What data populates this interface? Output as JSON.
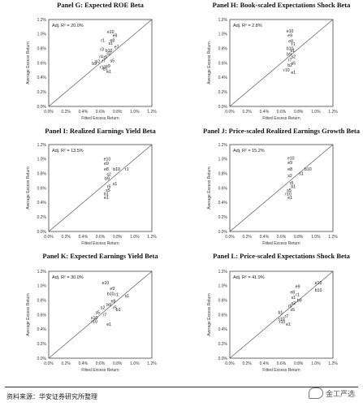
{
  "source_note": "资料来源：华安证券研究所整理",
  "watermark": "金工严选",
  "chart_data": [
    {
      "type": "scatter",
      "title": "Panel G: Expected ROE Beta",
      "xlabel": "Fitted Excess Return",
      "ylabel": "Average Excess Return",
      "annotation": "Adj. R² = 20.0%",
      "xlim": [
        0,
        1.2
      ],
      "ylim": [
        0,
        1.2
      ],
      "xticks": [
        "0.0%",
        "0.2%",
        "0.4%",
        "0.6%",
        "0.8%",
        "1.0%",
        "1.2%"
      ],
      "yticks": [
        "0.0%",
        "0.2%",
        "0.4%",
        "0.6%",
        "0.8%",
        "1.0%",
        "1.2%"
      ],
      "reference_line": "45-degree",
      "points": [
        {
          "label": "e10",
          "x": 0.72,
          "y": 1.03
        },
        {
          "label": "e9",
          "x": 0.77,
          "y": 0.98
        },
        {
          "label": "r1",
          "x": 0.63,
          "y": 0.91
        },
        {
          "label": "e8",
          "x": 0.74,
          "y": 0.91
        },
        {
          "label": "s1",
          "x": 0.72,
          "y": 0.87
        },
        {
          "label": "e7",
          "x": 0.79,
          "y": 0.82
        },
        {
          "label": "r3",
          "x": 0.62,
          "y": 0.79
        },
        {
          "label": "b10",
          "x": 0.7,
          "y": 0.77
        },
        {
          "label": "s2",
          "x": 0.7,
          "y": 0.73
        },
        {
          "label": "r4",
          "x": 0.61,
          "y": 0.69
        },
        {
          "label": "r5",
          "x": 0.66,
          "y": 0.68
        },
        {
          "label": "b2",
          "x": 0.57,
          "y": 0.62
        },
        {
          "label": "r7",
          "x": 0.64,
          "y": 0.63
        },
        {
          "label": "s5",
          "x": 0.74,
          "y": 0.63
        },
        {
          "label": "b9",
          "x": 0.53,
          "y": 0.59
        },
        {
          "label": "r10",
          "x": 0.63,
          "y": 0.54
        },
        {
          "label": "s9",
          "x": 0.69,
          "y": 0.56
        },
        {
          "label": "b1",
          "x": 0.66,
          "y": 0.52
        },
        {
          "label": "e1",
          "x": 0.7,
          "y": 0.48
        }
      ]
    },
    {
      "type": "scatter",
      "title": "Panel H: Book-scaled Expectations Shock Beta",
      "xlabel": "Fitted Excess Return",
      "ylabel": "Average Excess Return",
      "annotation": "Adj. R² = 2.8%",
      "xlim": [
        0,
        1.2
      ],
      "ylim": [
        0,
        1.2
      ],
      "xticks": [
        "0.0%",
        "0.2%",
        "0.4%",
        "0.6%",
        "0.8%",
        "1.0%",
        "1.2%"
      ],
      "yticks": [
        "0.0%",
        "0.2%",
        "0.4%",
        "0.6%",
        "0.8%",
        "1.0%",
        "1.2%"
      ],
      "reference_line": "45-degree",
      "points": [
        {
          "label": "e10",
          "x": 0.7,
          "y": 1.04
        },
        {
          "label": "e9",
          "x": 0.7,
          "y": 0.98
        },
        {
          "label": "e8",
          "x": 0.71,
          "y": 0.9
        },
        {
          "label": "r1",
          "x": 0.74,
          "y": 0.86
        },
        {
          "label": "b10",
          "x": 0.7,
          "y": 0.8
        },
        {
          "label": "s1",
          "x": 0.73,
          "y": 0.77
        },
        {
          "label": "b9",
          "x": 0.69,
          "y": 0.72
        },
        {
          "label": "s2",
          "x": 0.74,
          "y": 0.69
        },
        {
          "label": "r7",
          "x": 0.7,
          "y": 0.64
        },
        {
          "label": "s5",
          "x": 0.74,
          "y": 0.6
        },
        {
          "label": "b2",
          "x": 0.7,
          "y": 0.57
        },
        {
          "label": "r10",
          "x": 0.66,
          "y": 0.5
        },
        {
          "label": "e1",
          "x": 0.74,
          "y": 0.47
        }
      ]
    },
    {
      "type": "scatter",
      "title": "Panel I: Realized Earnings Yield Beta",
      "xlabel": "Fitted Excess Return",
      "ylabel": "Average Excess Return",
      "annotation": "Adj. R² = 13.5%",
      "xlim": [
        0,
        1.2
      ],
      "ylim": [
        0,
        1.2
      ],
      "xticks": [
        "0.0%",
        "0.2%",
        "0.4%",
        "0.6%",
        "0.8%",
        "1.0%",
        "1.2%"
      ],
      "yticks": [
        "0.0%",
        "0.2%",
        "0.4%",
        "0.6%",
        "0.8%",
        "1.0%",
        "1.2%"
      ],
      "reference_line": "45-degree",
      "points": [
        {
          "label": "e10",
          "x": 0.68,
          "y": 1.0
        },
        {
          "label": "e9",
          "x": 0.67,
          "y": 0.94
        },
        {
          "label": "e8",
          "x": 0.67,
          "y": 0.86
        },
        {
          "label": "b10",
          "x": 0.79,
          "y": 0.86
        },
        {
          "label": "r1",
          "x": 0.91,
          "y": 0.86
        },
        {
          "label": "s2",
          "x": 0.7,
          "y": 0.79
        },
        {
          "label": "b9",
          "x": 0.68,
          "y": 0.73
        },
        {
          "label": "s1",
          "x": 0.77,
          "y": 0.66
        },
        {
          "label": "r5",
          "x": 0.7,
          "y": 0.62
        },
        {
          "label": "s5",
          "x": 0.69,
          "y": 0.57
        },
        {
          "label": "b1",
          "x": 0.67,
          "y": 0.52
        },
        {
          "label": "e1",
          "x": 0.67,
          "y": 0.47
        }
      ]
    },
    {
      "type": "scatter",
      "title": "Panel J: Price-scaled Realized Earnings Growth Beta",
      "xlabel": "Fitted Excess Return",
      "ylabel": "Average Excess Return",
      "annotation": "Adj. R² = 15.2%",
      "xlim": [
        0,
        1.2
      ],
      "ylim": [
        0,
        1.2
      ],
      "xticks": [
        "0.0%",
        "0.2%",
        "0.4%",
        "0.6%",
        "0.8%",
        "1.0%",
        "1.2%"
      ],
      "yticks": [
        "0.0%",
        "0.2%",
        "0.4%",
        "0.6%",
        "0.8%",
        "1.0%",
        "1.2%"
      ],
      "reference_line": "45-degree",
      "points": [
        {
          "label": "e10",
          "x": 0.71,
          "y": 1.01
        },
        {
          "label": "e9",
          "x": 0.7,
          "y": 0.95
        },
        {
          "label": "b10",
          "x": 0.91,
          "y": 0.86
        },
        {
          "label": "e8",
          "x": 0.7,
          "y": 0.86
        },
        {
          "label": "s1",
          "x": 0.83,
          "y": 0.8
        },
        {
          "label": "s2",
          "x": 0.7,
          "y": 0.77
        },
        {
          "label": "r5",
          "x": 0.72,
          "y": 0.67
        },
        {
          "label": "b1",
          "x": 0.74,
          "y": 0.62
        },
        {
          "label": "s5",
          "x": 0.69,
          "y": 0.57
        },
        {
          "label": "r10",
          "x": 0.68,
          "y": 0.52
        },
        {
          "label": "e1",
          "x": 0.7,
          "y": 0.47
        }
      ]
    },
    {
      "type": "scatter",
      "title": "Panel K: Expected Earnings Yield Beta",
      "xlabel": "Fitted Excess Return",
      "ylabel": "Average Excess Return",
      "annotation": "Adj. R² = 30.0%",
      "xlim": [
        0,
        1.2
      ],
      "ylim": [
        0,
        1.2
      ],
      "xticks": [
        "0.0%",
        "0.2%",
        "0.4%",
        "0.6%",
        "0.8%",
        "1.0%",
        "1.2%"
      ],
      "yticks": [
        "0.0%",
        "0.2%",
        "0.4%",
        "0.6%",
        "0.8%",
        "1.0%",
        "1.2%"
      ],
      "reference_line": "45-degree",
      "points": [
        {
          "label": "e10",
          "x": 0.66,
          "y": 1.04
        },
        {
          "label": "e9",
          "x": 0.74,
          "y": 0.96
        },
        {
          "label": "b10",
          "x": 0.72,
          "y": 0.89
        },
        {
          "label": "r1",
          "x": 0.79,
          "y": 0.88
        },
        {
          "label": "s1",
          "x": 0.91,
          "y": 0.86
        },
        {
          "label": "e8",
          "x": 0.75,
          "y": 0.79
        },
        {
          "label": "b9",
          "x": 0.7,
          "y": 0.74
        },
        {
          "label": "s2",
          "x": 0.63,
          "y": 0.7
        },
        {
          "label": "r5",
          "x": 0.77,
          "y": 0.7
        },
        {
          "label": "b1",
          "x": 0.81,
          "y": 0.67
        },
        {
          "label": "s5",
          "x": 0.57,
          "y": 0.63
        },
        {
          "label": "r7",
          "x": 0.65,
          "y": 0.6
        },
        {
          "label": "s10",
          "x": 0.53,
          "y": 0.56
        },
        {
          "label": "r10",
          "x": 0.53,
          "y": 0.51
        },
        {
          "label": "e1",
          "x": 0.7,
          "y": 0.47
        }
      ]
    },
    {
      "type": "scatter",
      "title": "Panel L: Price-scaled Expectations Shock Beta",
      "xlabel": "Fitted Excess Return",
      "ylabel": "Average Excess Return",
      "annotation": "Adj. R² = 41.9%",
      "xlim": [
        0,
        1.2
      ],
      "ylim": [
        0,
        1.2
      ],
      "xticks": [
        "0.0%",
        "0.2%",
        "0.4%",
        "0.6%",
        "0.8%",
        "1.0%",
        "1.2%"
      ],
      "yticks": [
        "0.0%",
        "0.2%",
        "0.4%",
        "0.6%",
        "0.8%",
        "1.0%",
        "1.2%"
      ],
      "reference_line": "45-degree",
      "points": [
        {
          "label": "e10",
          "x": 1.03,
          "y": 1.04
        },
        {
          "label": "e9",
          "x": 0.79,
          "y": 0.99
        },
        {
          "label": "b10",
          "x": 1.03,
          "y": 0.94
        },
        {
          "label": "e8",
          "x": 0.73,
          "y": 0.91
        },
        {
          "label": "r1",
          "x": 0.79,
          "y": 0.88
        },
        {
          "label": "s1",
          "x": 0.74,
          "y": 0.84
        },
        {
          "label": "b9",
          "x": 0.81,
          "y": 0.8
        },
        {
          "label": "s2",
          "x": 0.74,
          "y": 0.76
        },
        {
          "label": "r5",
          "x": 0.7,
          "y": 0.72
        },
        {
          "label": "s5",
          "x": 0.73,
          "y": 0.67
        },
        {
          "label": "b1",
          "x": 0.59,
          "y": 0.63
        },
        {
          "label": "r7",
          "x": 0.66,
          "y": 0.58
        },
        {
          "label": "s10",
          "x": 0.6,
          "y": 0.54
        },
        {
          "label": "r10",
          "x": 0.61,
          "y": 0.5
        },
        {
          "label": "e1",
          "x": 0.68,
          "y": 0.47
        }
      ]
    }
  ]
}
